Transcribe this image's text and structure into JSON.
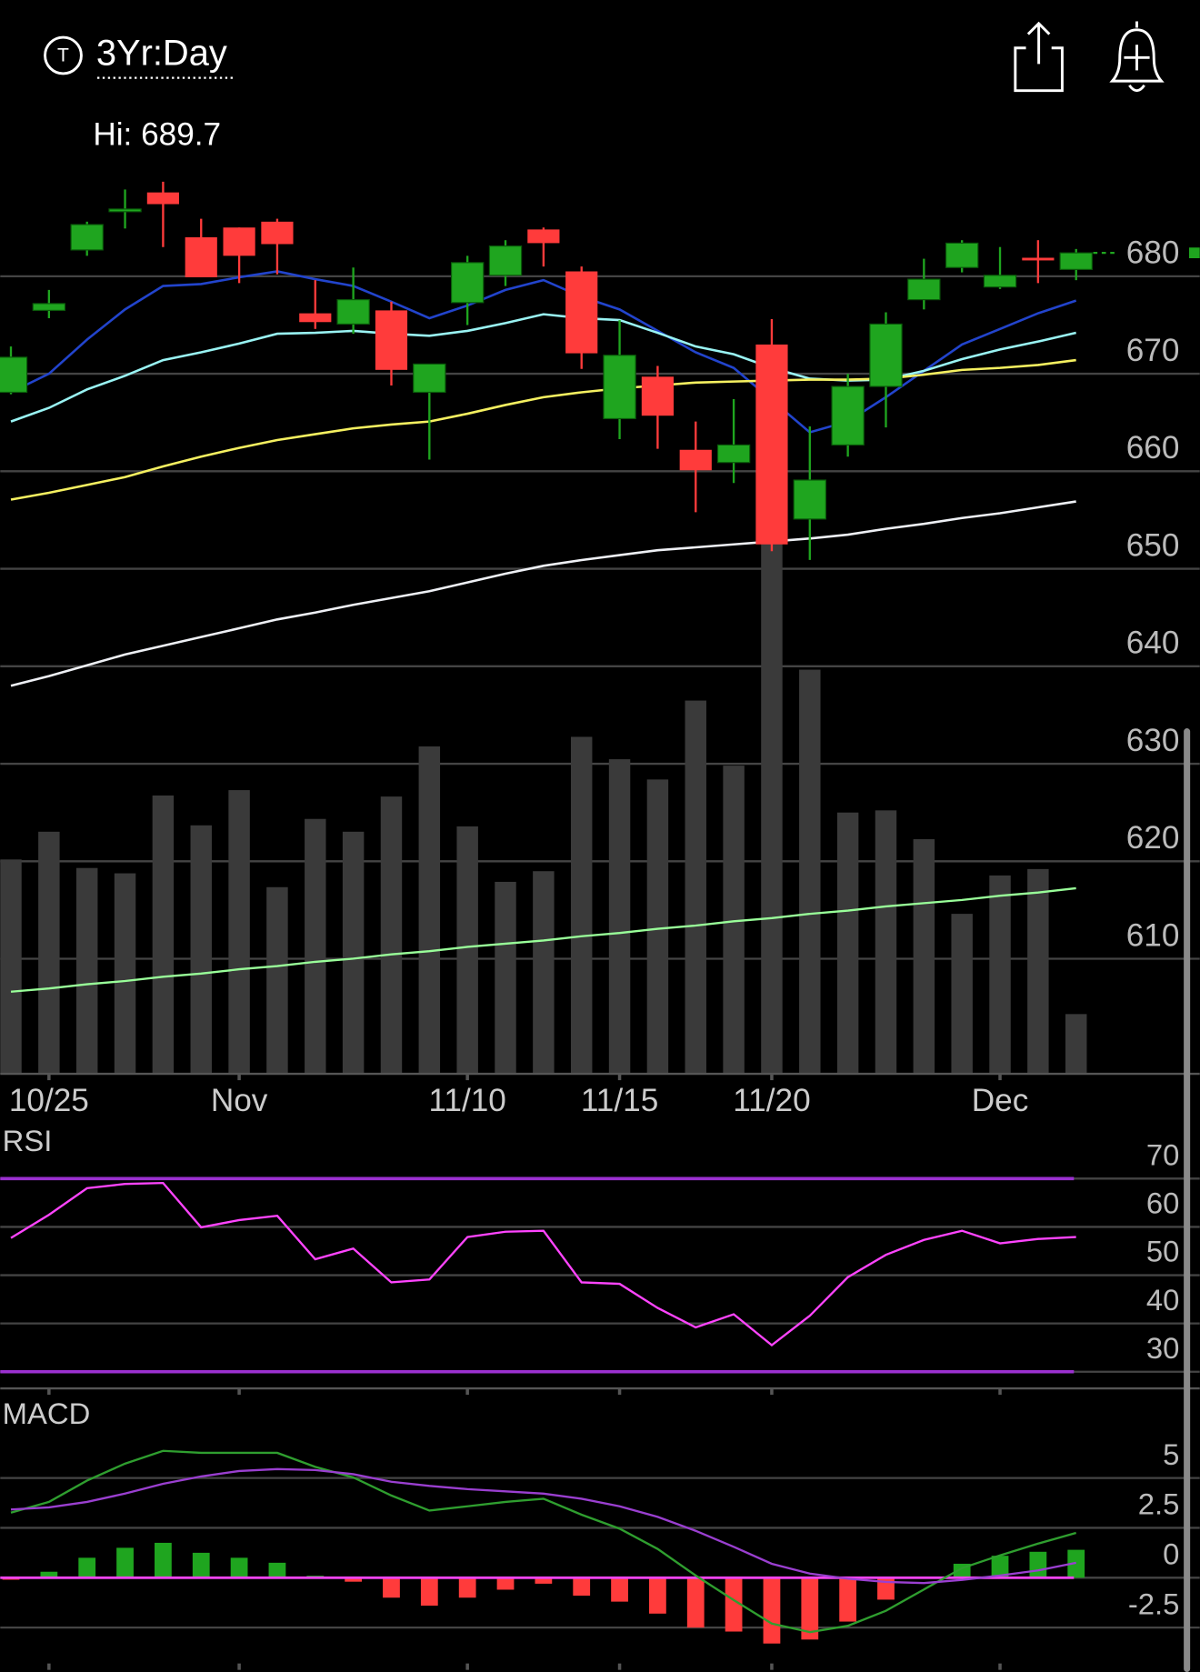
{
  "header": {
    "icon": "T",
    "title": "3Yr:Day"
  },
  "chart_data": [
    {
      "type": "candlestick",
      "hi_label": "Hi: 689.7",
      "categories": [
        null,
        "10/25",
        null,
        null,
        null,
        null,
        "Nov",
        null,
        null,
        null,
        null,
        null,
        "11/10",
        null,
        null,
        null,
        "11/15",
        null,
        null,
        null,
        "11/20",
        null,
        null,
        null,
        null,
        null,
        "Dec",
        null,
        null
      ],
      "open": [
        668.1,
        676.5,
        682.7,
        686.7,
        688.6,
        684.0,
        685.0,
        685.6,
        676.2,
        675.1,
        676.5,
        668.1,
        677.3,
        680.1,
        684.8,
        680.5,
        665.4,
        669.7,
        662.2,
        660.9,
        673.0,
        655.1,
        662.7,
        668.7,
        677.6,
        680.9,
        678.9,
        681.9,
        680.7
      ],
      "high": [
        672.8,
        678.6,
        685.6,
        688.9,
        689.7,
        685.9,
        685.0,
        685.9,
        679.6,
        680.9,
        677.4,
        671.0,
        682.1,
        683.7,
        685.0,
        681.0,
        675.5,
        670.8,
        665.1,
        667.4,
        675.6,
        664.6,
        670.0,
        676.3,
        681.8,
        683.7,
        683.0,
        683.7,
        682.8
      ],
      "low": [
        667.9,
        675.7,
        682.1,
        684.9,
        683.0,
        679.9,
        679.3,
        680.2,
        674.6,
        674.1,
        668.8,
        661.2,
        675.0,
        679.0,
        681.0,
        670.5,
        663.3,
        662.3,
        655.8,
        658.8,
        651.8,
        650.9,
        661.5,
        664.5,
        676.6,
        680.4,
        678.7,
        679.3,
        679.6
      ],
      "close": [
        671.7,
        677.2,
        685.3,
        686.9,
        687.4,
        679.9,
        682.1,
        683.3,
        675.3,
        677.6,
        670.4,
        671.0,
        681.4,
        683.1,
        683.4,
        672.1,
        671.9,
        665.7,
        660.1,
        662.7,
        652.5,
        659.1,
        668.7,
        675.1,
        679.7,
        683.4,
        680.1,
        681.7,
        682.4
      ],
      "up_color": "#1fa51f",
      "down_color": "#ff3b3b",
      "ylim": [
        598.2,
        697.4
      ],
      "yticks": [
        610,
        620,
        630,
        640,
        650,
        660,
        670,
        680
      ],
      "grid": true,
      "overlays": [
        {
          "color": "#2244cc",
          "values": [
            668.1,
            670.0,
            673.5,
            676.6,
            679.0,
            679.2,
            679.9,
            680.5,
            679.7,
            679.0,
            677.4,
            675.7,
            677.0,
            678.6,
            679.6,
            677.9,
            676.6,
            674.4,
            672.2,
            670.6,
            667.3,
            664.0,
            665.1,
            667.6,
            670.3,
            673.0,
            674.6,
            676.2,
            677.5
          ]
        },
        {
          "color": "#99f3f3",
          "values": [
            665.1,
            666.5,
            668.4,
            669.8,
            671.4,
            672.2,
            673.1,
            674.1,
            674.2,
            674.4,
            674.1,
            673.9,
            674.4,
            675.2,
            676.1,
            675.7,
            675.5,
            674.2,
            672.8,
            672.0,
            670.6,
            669.5,
            669.3,
            669.4,
            670.3,
            671.5,
            672.5,
            673.3,
            674.2
          ]
        },
        {
          "color": "#f5f060",
          "values": [
            657.1,
            657.8,
            658.6,
            659.4,
            660.5,
            661.5,
            662.4,
            663.2,
            663.8,
            664.4,
            664.8,
            665.1,
            665.9,
            666.8,
            667.6,
            668.1,
            668.5,
            668.8,
            669.1,
            669.2,
            669.3,
            669.4,
            669.4,
            669.5,
            669.9,
            670.4,
            670.6,
            670.9,
            671.4
          ]
        },
        {
          "color": "#eef0f5",
          "values": [
            638.0,
            639.0,
            640.1,
            641.2,
            642.1,
            643.0,
            643.9,
            644.8,
            645.5,
            646.3,
            647.0,
            647.7,
            648.6,
            649.5,
            650.3,
            650.9,
            651.4,
            651.9,
            652.2,
            652.5,
            652.8,
            653.1,
            653.5,
            654.1,
            654.6,
            655.2,
            655.7,
            656.3,
            656.9
          ]
        }
      ],
      "volume": {
        "color": "#3a3a3a",
        "ylim": [
          0,
          500
        ],
        "values": [
          201,
          227,
          193,
          188,
          261,
          233,
          266,
          175,
          239,
          227,
          260,
          307,
          232,
          180,
          190,
          316,
          295,
          276,
          350,
          289,
          497,
          379,
          245,
          247,
          220,
          150,
          186,
          192,
          56
        ],
        "average": {
          "color": "#99ff99",
          "values": [
            77,
            80,
            84,
            87,
            91,
            94,
            98,
            101,
            105,
            108,
            112,
            115,
            119,
            122,
            125,
            129,
            132,
            136,
            139,
            143,
            146,
            150,
            153,
            157,
            160,
            163,
            167,
            170,
            174
          ]
        }
      }
    },
    {
      "type": "line",
      "title": "RSI",
      "ylim": [
        27,
        80
      ],
      "yticks": [
        30,
        40,
        50,
        60,
        70
      ],
      "grid": true,
      "bands": [
        70,
        30
      ],
      "band_color": "#9b30d0",
      "series": [
        {
          "color": "#ff44ff",
          "values": [
            57.7,
            62.5,
            68.0,
            68.9,
            69.1,
            59.9,
            61.4,
            62.3,
            53.3,
            55.5,
            48.5,
            49.1,
            57.9,
            59.0,
            59.2,
            48.5,
            48.2,
            43.2,
            39.2,
            41.9,
            35.5,
            41.6,
            49.6,
            54.2,
            57.3,
            59.2,
            56.6,
            57.5,
            57.9
          ]
        }
      ]
    },
    {
      "type": "macd",
      "title": "MACD",
      "ylim": [
        -4.3,
        8.8
      ],
      "yticks": [
        -2.5,
        0,
        2.5,
        5
      ],
      "grid": true,
      "zero_color": "#ee44ee",
      "series": [
        {
          "color": "#2f9e2f",
          "values": [
            3.26,
            3.8,
            4.87,
            5.72,
            6.36,
            6.26,
            6.26,
            6.26,
            5.56,
            5.03,
            4.12,
            3.37,
            3.58,
            3.8,
            3.96,
            3.16,
            2.46,
            1.44,
            0.11,
            -1.12,
            -2.3,
            -2.73,
            -2.41,
            -1.66,
            -0.59,
            0.48,
            1.12,
            1.71,
            2.25
          ]
        },
        {
          "color": "#9a3fd0",
          "values": [
            3.42,
            3.53,
            3.8,
            4.22,
            4.71,
            5.08,
            5.35,
            5.45,
            5.4,
            5.19,
            4.81,
            4.6,
            4.44,
            4.33,
            4.22,
            3.96,
            3.58,
            3.05,
            2.35,
            1.55,
            0.7,
            0.21,
            -0.05,
            -0.21,
            -0.27,
            -0.11,
            0.11,
            0.37,
            0.75
          ]
        }
      ],
      "histogram": {
        "up_color": "#1fa51f",
        "down_color": "#ff3b3b",
        "values": [
          -0.1,
          0.3,
          1.0,
          1.5,
          1.75,
          1.25,
          1.0,
          0.75,
          0.1,
          -0.2,
          -1.0,
          -1.4,
          -1.0,
          -0.6,
          -0.3,
          -0.9,
          -1.2,
          -1.8,
          -2.5,
          -2.7,
          -3.3,
          -3.1,
          -2.2,
          -1.1,
          0,
          0.7,
          1.1,
          1.3,
          1.4
        ]
      }
    }
  ]
}
